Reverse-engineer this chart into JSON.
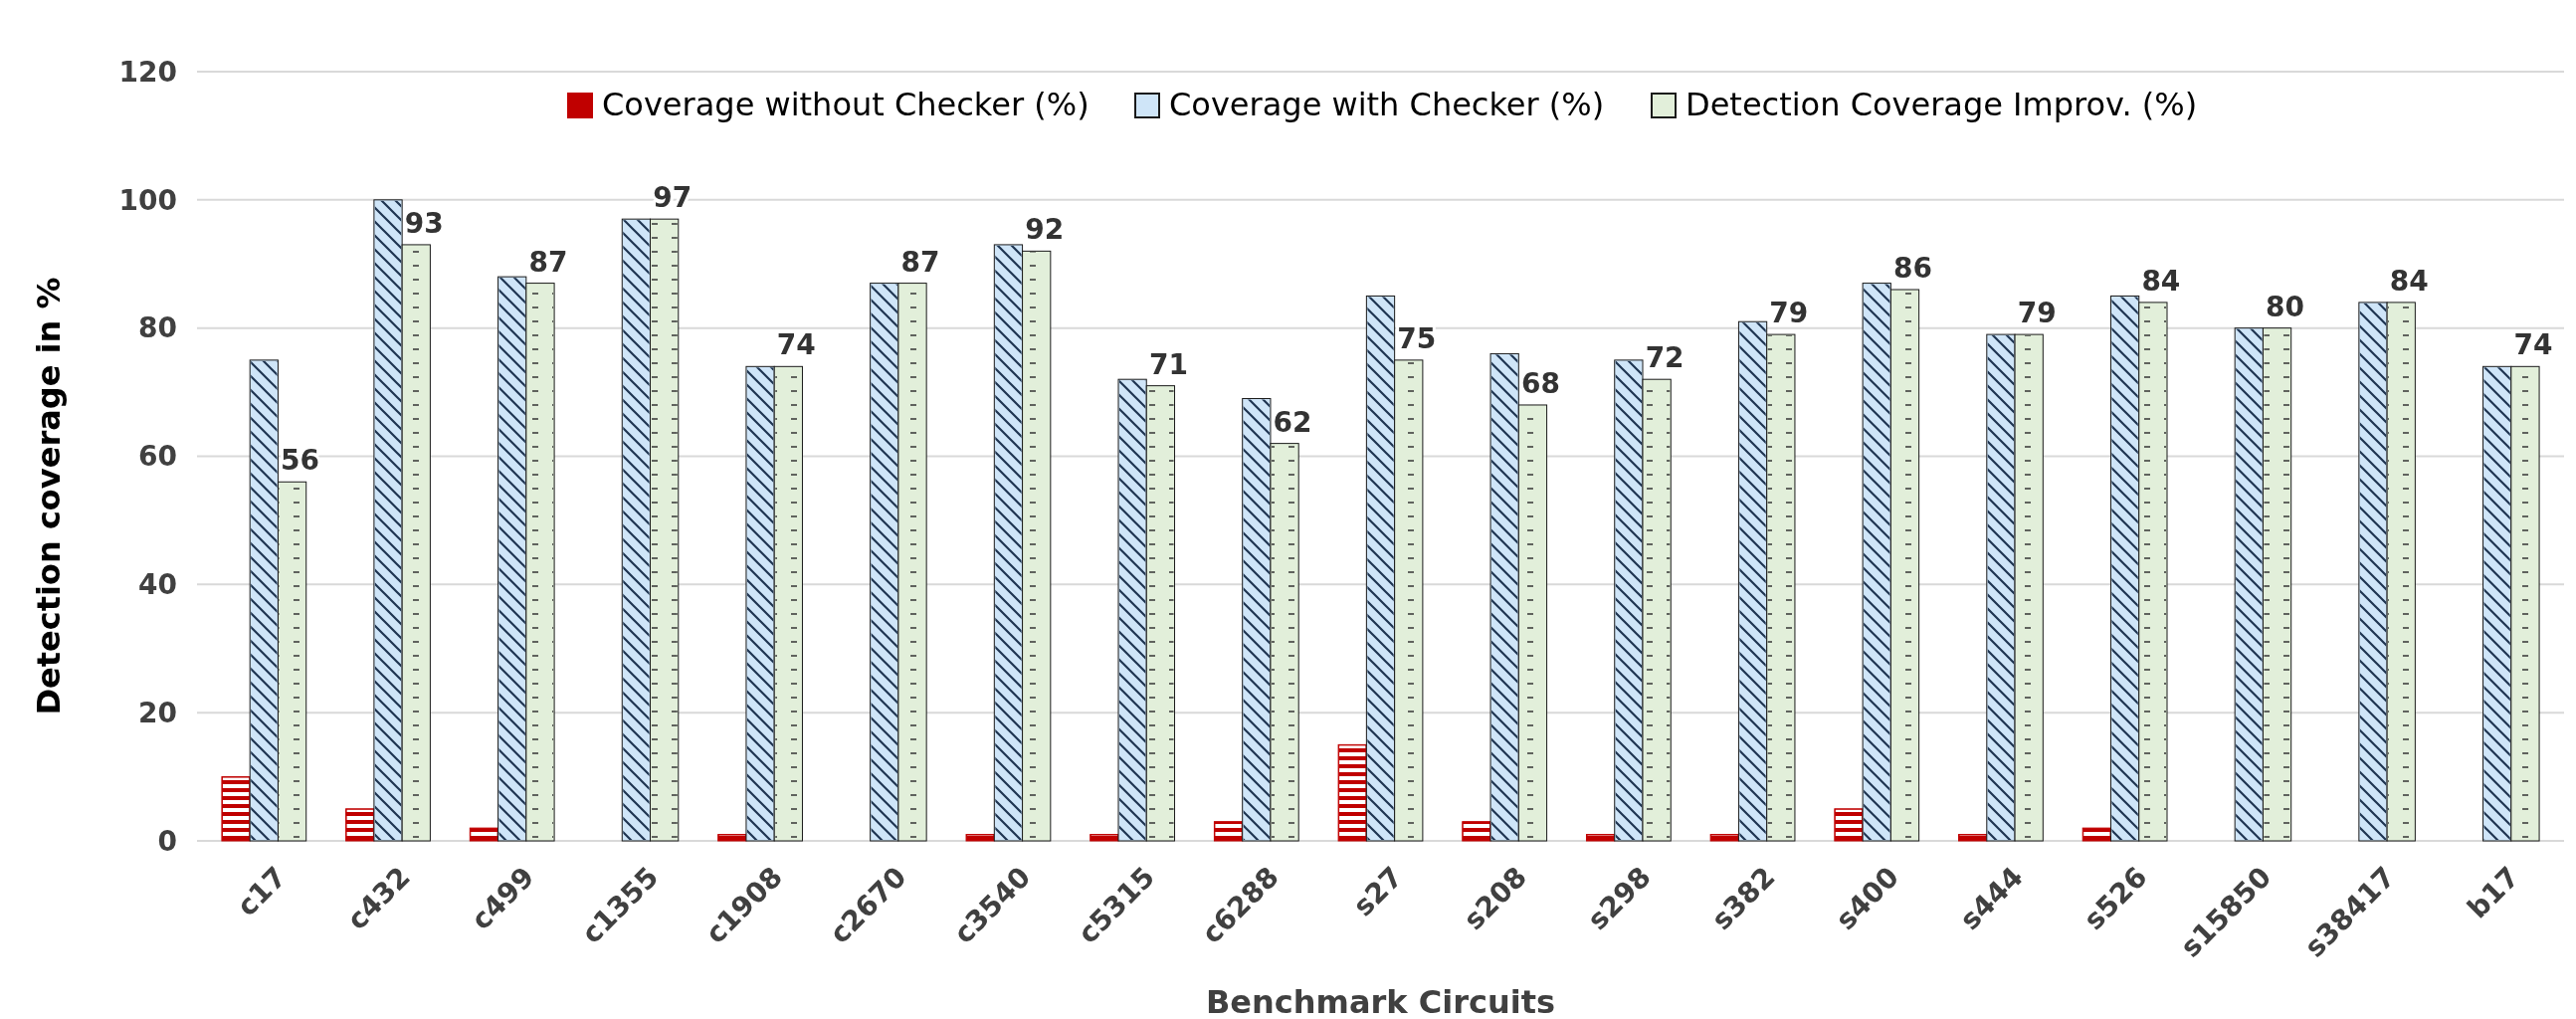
{
  "chart_data": {
    "type": "bar",
    "xlabel": "Benchmark Circuits",
    "ylabel": "Detection coverage in %",
    "categories": [
      "c17",
      "c432",
      "c499",
      "c1355",
      "c1908",
      "c2670",
      "c3540",
      "c5315",
      "c6288",
      "s27",
      "s208",
      "s298",
      "s382",
      "s400",
      "s444",
      "s526",
      "s15850",
      "s38417",
      "b17"
    ],
    "series": [
      {
        "name": "Coverage without Checker (%)",
        "color": "#c00000",
        "values": [
          10,
          5,
          2,
          null,
          1,
          null,
          1,
          1,
          3,
          15,
          3,
          1,
          1,
          5,
          1,
          2,
          null,
          null,
          null
        ]
      },
      {
        "name": "Coverage with Checker (%)",
        "color": "#cfe5f8",
        "values": [
          75,
          100,
          88,
          97,
          74,
          87,
          93,
          72,
          69,
          85,
          76,
          75,
          81,
          87,
          79,
          85,
          80,
          84,
          74
        ]
      },
      {
        "name": "Detection Coverage Improv. (%)",
        "color": "#e2efda",
        "values": [
          56,
          93,
          87,
          97,
          74,
          87,
          92,
          71,
          62,
          75,
          68,
          72,
          79,
          86,
          79,
          84,
          80,
          84,
          74
        ],
        "value_labels": [
          "56",
          "93",
          "87",
          "97",
          "74",
          "87",
          "92",
          "71",
          "62",
          "75",
          "68",
          "72",
          "79",
          "86",
          "79",
          "84",
          "80",
          "84",
          "74"
        ]
      }
    ],
    "ylim": [
      0,
      120
    ],
    "yticks": [
      0,
      20,
      40,
      60,
      80,
      100,
      120
    ],
    "grid": "y",
    "legend": "top"
  }
}
